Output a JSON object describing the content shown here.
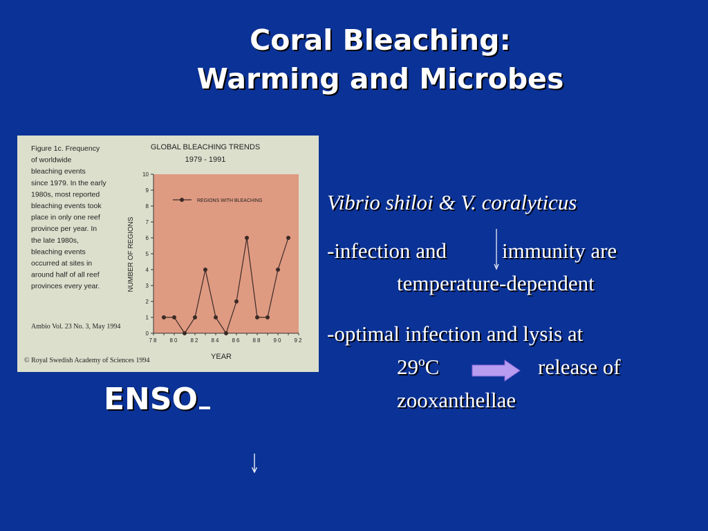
{
  "slide": {
    "title_line1": "Coral Bleaching:",
    "title_line2": "Warming and Microbes",
    "enso": "ENSO",
    "bullets": {
      "species": "Vibrio shiloi & V. coralyticus",
      "b1_line1_a": "-infection and",
      "b1_line1_b": "immunity are",
      "b1_line2": "temperature-dependent",
      "b2_line1": "-optimal infection and lysis at",
      "b2_temp": "29ºC",
      "b2_release": "release of",
      "b2_line3": "zooxanthellae"
    },
    "colors": {
      "background": "#0b3296",
      "text": "#ffffff",
      "arrow": "#b89cf0"
    },
    "icons": [
      "down-arrow-icon",
      "right-arrow-icon",
      "small-down-arrow-icon"
    ]
  },
  "figure": {
    "caption_lines": [
      "Figure 1c. Frequency",
      "of worldwide",
      "bleaching events",
      "since 1979. In the early",
      "1980s, most reported",
      "bleaching events took",
      "place in only one reef",
      "province per year. In",
      "the late 1980s,",
      "bleaching events",
      "occurred at sites in",
      "around half of all reef",
      "provinces every year."
    ],
    "source": "Ambio Vol. 23 No. 3, May 1994",
    "copyright": "© Royal Swedish Academy of Sciences 1994"
  },
  "chart_data": {
    "type": "line",
    "title": "GLOBAL BLEACHING TRENDS",
    "subtitle": "1979 - 1991",
    "xlabel": "YEAR",
    "ylabel": "NUMBER OF REGIONS",
    "ylim": [
      0,
      10
    ],
    "xlim": [
      78,
      92
    ],
    "y_ticks": [
      "0",
      "1",
      "2",
      "3",
      "4",
      "5",
      "6",
      "7",
      "8",
      "9",
      "10"
    ],
    "x_ticks": [
      "78",
      "80",
      "82",
      "84",
      "86",
      "88",
      "90",
      "92"
    ],
    "legend": "top-left",
    "grid": false,
    "series": [
      {
        "name": "REGIONS WITH BLEACHING",
        "x": [
          79,
          80,
          81,
          82,
          83,
          84,
          85,
          86,
          87,
          88,
          89,
          90,
          91
        ],
        "values": [
          1,
          1,
          0,
          1,
          4,
          1,
          0,
          2,
          6,
          1,
          1,
          4,
          6
        ]
      }
    ],
    "colors": {
      "plot_bg": "#df9a82",
      "line": "#3a2a25"
    }
  }
}
